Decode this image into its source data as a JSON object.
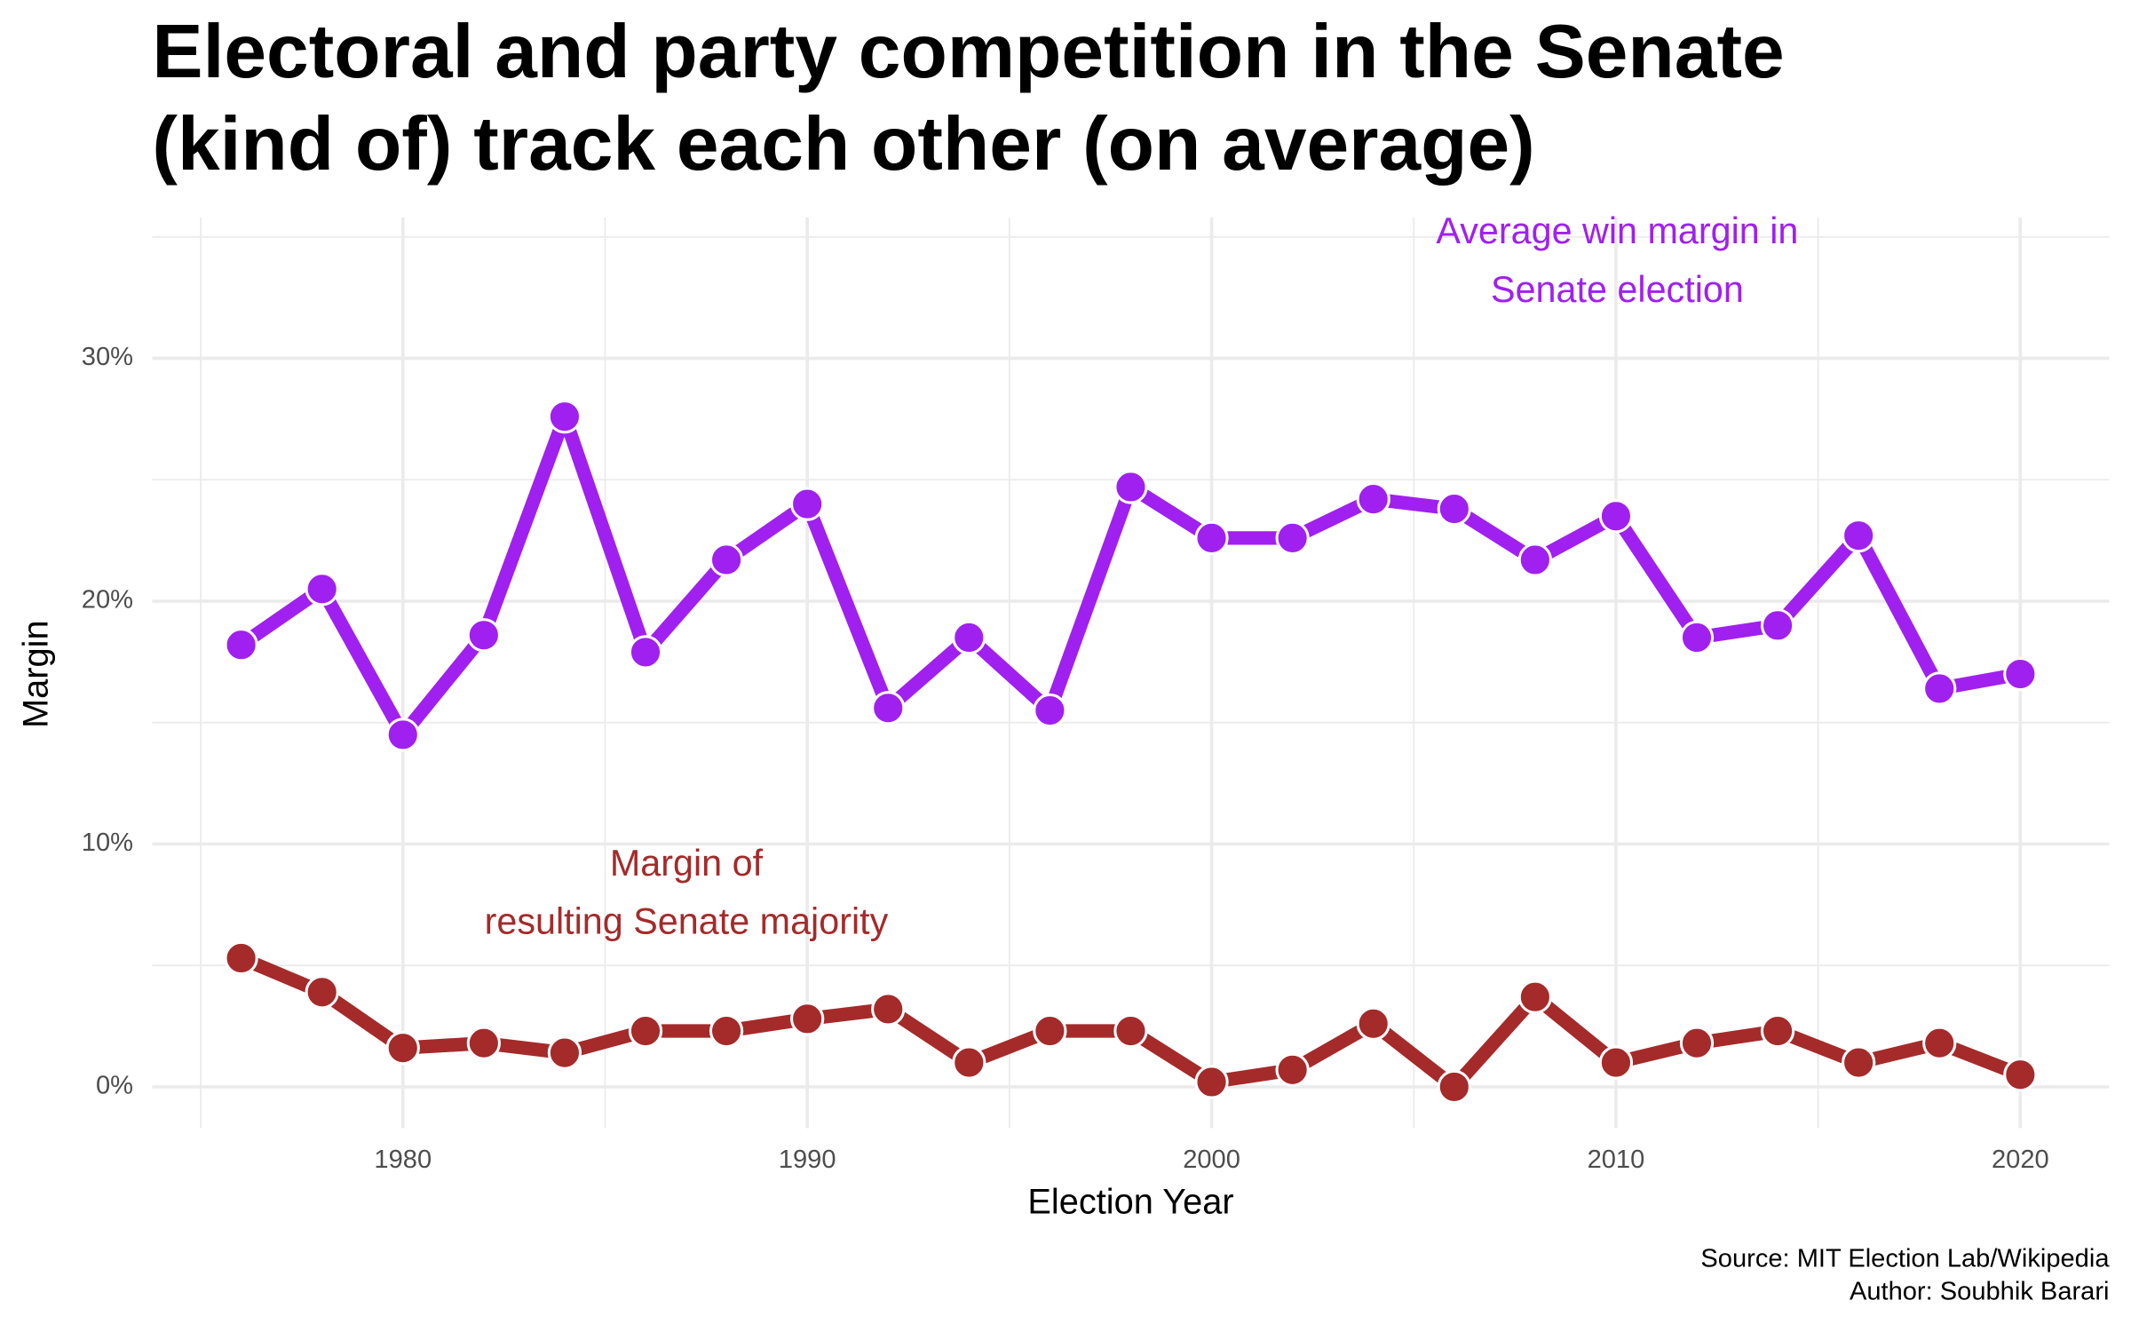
{
  "chart_data": {
    "type": "line",
    "title": [
      "Electoral and party competition in the Senate",
      "(kind of) track each other (on average)"
    ],
    "x_label": "Election Year",
    "y_label": "Margin",
    "caption": [
      "Source: MIT Election Lab/Wikipedia",
      "Author: Soubhik Barari"
    ],
    "x": [
      1976,
      1978,
      1980,
      1982,
      1984,
      1986,
      1988,
      1990,
      1992,
      1994,
      1996,
      1998,
      2000,
      2002,
      2004,
      2006,
      2008,
      2010,
      2012,
      2014,
      2016,
      2018,
      2020
    ],
    "series": [
      {
        "name": "Average win margin in Senate election",
        "color": "#a020f0",
        "values": [
          18.2,
          20.5,
          14.5,
          18.6,
          27.6,
          17.9,
          21.7,
          24.0,
          15.6,
          18.5,
          15.5,
          24.7,
          22.6,
          22.6,
          24.2,
          23.8,
          21.7,
          23.5,
          18.5,
          19.0,
          22.7,
          16.4,
          17.0
        ]
      },
      {
        "name": "Margin of resulting Senate majority",
        "color": "#a52a2a",
        "values": [
          5.3,
          3.9,
          1.6,
          1.8,
          1.4,
          2.3,
          2.3,
          2.8,
          3.2,
          1.0,
          2.3,
          2.3,
          0.2,
          0.7,
          2.6,
          0.0,
          3.7,
          1.0,
          1.8,
          2.3,
          1.0,
          1.8,
          0.5
        ]
      }
    ],
    "annotations": [
      {
        "lines": [
          "Average win margin in",
          "Senate election"
        ],
        "color": "#a020f0"
      },
      {
        "lines": [
          "Margin of",
          "resulting Senate majority"
        ],
        "color": "#a52a2a"
      }
    ],
    "xlim": [
      1973.8,
      2022.2
    ],
    "ylim": [
      -1.7,
      35.8
    ],
    "xticks": [
      1980,
      1990,
      2000,
      2010,
      2020
    ],
    "x_minor_ticks": [
      1975,
      1985,
      1995,
      2005,
      2015
    ],
    "yticks": [
      {
        "value": 0,
        "label": "0%"
      },
      {
        "value": 10,
        "label": "10%"
      },
      {
        "value": 20,
        "label": "20%"
      },
      {
        "value": 30,
        "label": "30%"
      }
    ],
    "y_minor_ticks": [
      5,
      15,
      25,
      35
    ],
    "grid": true
  }
}
